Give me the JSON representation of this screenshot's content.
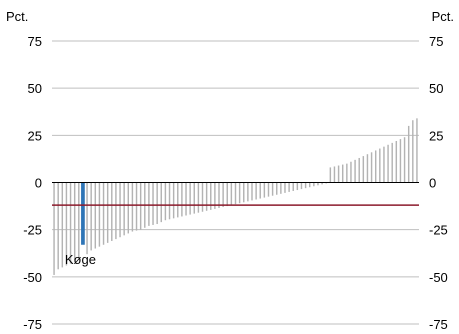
{
  "chart_data": {
    "type": "bar",
    "left_axis_unit": "Pct.",
    "right_axis_unit": "Pct.",
    "ylim": [
      -75,
      75
    ],
    "yticks": [
      75,
      50,
      25,
      0,
      -25,
      -50,
      -75
    ],
    "grid": true,
    "reference_line": -12,
    "highlight_label": "Køge",
    "highlight_index": 7,
    "values": [
      -49,
      -46,
      -45,
      -44,
      -43,
      -41,
      -40,
      -33,
      -38,
      -36,
      -35,
      -34,
      -33,
      -32,
      -31,
      -30,
      -29,
      -28,
      -27,
      -26,
      -25.5,
      -25,
      -24,
      -23,
      -22.5,
      -22,
      -21,
      -20,
      -19.5,
      -19,
      -18.5,
      -18,
      -17.5,
      -17,
      -16.5,
      -16,
      -15.5,
      -15,
      -14.5,
      -14,
      -13.5,
      -13,
      -12.5,
      -12,
      -11.5,
      -11,
      -10.5,
      -10,
      -9.5,
      -9,
      -8.5,
      -8,
      -7.5,
      -7,
      -6.5,
      -6,
      -5.5,
      -5,
      -4.5,
      -4,
      -3.5,
      -3,
      -2.5,
      -2,
      -1.5,
      -1,
      -0.5,
      8,
      8.5,
      9,
      9.5,
      10,
      11,
      12,
      13,
      14,
      15,
      16,
      17,
      18,
      19,
      20,
      21,
      22,
      23,
      24,
      30,
      33,
      34
    ],
    "colors": {
      "bar": "#b3b3b3",
      "highlight": "#2e75b6",
      "reference": "#8b1a2b",
      "zero_line": "#000000",
      "grid": "#bfbfbf"
    }
  }
}
